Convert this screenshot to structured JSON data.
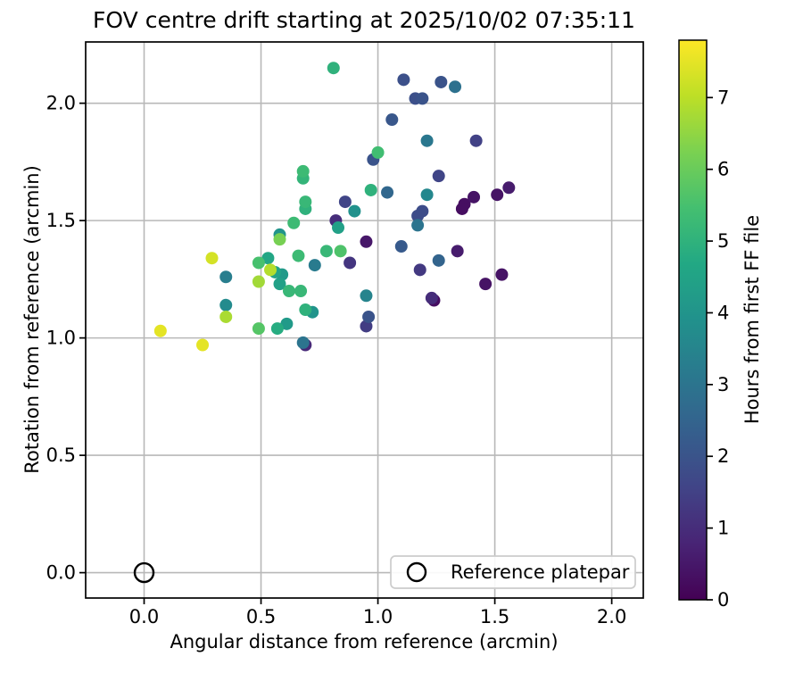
{
  "chart_data": {
    "type": "scatter",
    "title": "FOV centre drift starting at 2025/10/02 07:35:11",
    "xlabel": "Angular distance from reference (arcmin)",
    "ylabel": "Rotation from reference (arcmin)",
    "xlim": [
      -0.25,
      2.135
    ],
    "ylim": [
      -0.108,
      2.261
    ],
    "xticks": [
      0.0,
      0.5,
      1.0,
      1.5,
      2.0
    ],
    "yticks": [
      0.0,
      0.5,
      1.0,
      1.5,
      2.0
    ],
    "grid": true,
    "colormap": "viridis",
    "colorbar": {
      "label": "Hours from first FF file",
      "min": 0,
      "max": 7.8,
      "ticks": [
        0,
        1,
        2,
        3,
        4,
        5,
        6,
        7
      ]
    },
    "legend": {
      "label": "Reference platepar",
      "position": "lower right"
    },
    "reference_point": {
      "x": 0.0,
      "y": 0.0
    },
    "points_format": [
      "angular_distance_arcmin",
      "rotation_arcmin",
      "hours_from_first_ff"
    ],
    "points": [
      [
        0.81,
        2.15,
        5.0
      ],
      [
        1.11,
        2.1,
        1.9
      ],
      [
        1.27,
        2.09,
        2.0
      ],
      [
        1.33,
        2.07,
        2.9
      ],
      [
        1.16,
        2.02,
        1.9
      ],
      [
        1.19,
        2.02,
        2.0
      ],
      [
        1.06,
        1.93,
        2.1
      ],
      [
        1.21,
        1.84,
        3.1
      ],
      [
        1.42,
        1.84,
        1.5
      ],
      [
        1.0,
        1.79,
        5.4
      ],
      [
        0.98,
        1.76,
        2.0
      ],
      [
        0.68,
        1.71,
        5.3
      ],
      [
        0.68,
        1.68,
        5.1
      ],
      [
        1.26,
        1.69,
        1.6
      ],
      [
        0.97,
        1.63,
        5.0
      ],
      [
        1.04,
        1.62,
        2.6
      ],
      [
        1.21,
        1.61,
        3.6
      ],
      [
        1.41,
        1.6,
        0.4
      ],
      [
        1.51,
        1.61,
        0.4
      ],
      [
        1.56,
        1.64,
        0.6
      ],
      [
        1.37,
        1.57,
        0.3
      ],
      [
        0.86,
        1.58,
        1.6
      ],
      [
        0.69,
        1.58,
        5.2
      ],
      [
        0.69,
        1.55,
        5.0
      ],
      [
        0.9,
        1.54,
        3.9
      ],
      [
        0.82,
        1.5,
        1.0
      ],
      [
        0.64,
        1.49,
        5.3
      ],
      [
        0.83,
        1.47,
        4.4
      ],
      [
        0.58,
        1.44,
        4.0
      ],
      [
        0.58,
        1.42,
        6.2
      ],
      [
        1.17,
        1.52,
        1.8
      ],
      [
        1.19,
        1.54,
        1.8
      ],
      [
        1.17,
        1.48,
        3.0
      ],
      [
        1.36,
        1.55,
        0.3
      ],
      [
        0.95,
        1.41,
        0.5
      ],
      [
        1.1,
        1.39,
        2.2
      ],
      [
        1.34,
        1.37,
        0.6
      ],
      [
        1.26,
        1.33,
        2.5
      ],
      [
        1.18,
        1.29,
        1.3
      ],
      [
        1.53,
        1.27,
        0.4
      ],
      [
        1.46,
        1.23,
        0.4
      ],
      [
        1.23,
        1.17,
        1.0
      ],
      [
        1.24,
        1.16,
        0.3
      ],
      [
        0.95,
        1.18,
        3.5
      ],
      [
        0.96,
        1.09,
        2.0
      ],
      [
        0.95,
        1.05,
        1.4
      ],
      [
        0.88,
        1.32,
        1.2
      ],
      [
        0.78,
        1.37,
        5.2
      ],
      [
        0.84,
        1.37,
        5.6
      ],
      [
        0.73,
        1.31,
        3.2
      ],
      [
        0.66,
        1.35,
        5.3
      ],
      [
        0.53,
        1.34,
        4.6
      ],
      [
        0.49,
        1.32,
        5.5
      ],
      [
        0.54,
        1.29,
        6.9
      ],
      [
        0.49,
        1.24,
        6.7
      ],
      [
        0.56,
        1.28,
        4.5
      ],
      [
        0.59,
        1.27,
        4.2
      ],
      [
        0.58,
        1.23,
        4.4
      ],
      [
        0.29,
        1.34,
        7.3
      ],
      [
        0.35,
        1.26,
        3.3
      ],
      [
        0.35,
        1.14,
        3.7
      ],
      [
        0.35,
        1.09,
        6.8
      ],
      [
        0.07,
        1.03,
        7.5
      ],
      [
        0.25,
        0.97,
        7.5
      ],
      [
        0.49,
        1.04,
        5.7
      ],
      [
        0.62,
        1.2,
        5.2
      ],
      [
        0.67,
        1.2,
        5.2
      ],
      [
        0.69,
        1.12,
        5.0
      ],
      [
        0.72,
        1.11,
        4.0
      ],
      [
        0.61,
        1.06,
        4.2
      ],
      [
        0.57,
        1.04,
        4.8
      ],
      [
        0.68,
        0.98,
        3.0
      ],
      [
        0.69,
        0.97,
        0.9
      ]
    ]
  },
  "colors": {
    "grid": "#b8b8b8",
    "spine": "#000000",
    "legend_border": "#cccccc",
    "background": "#ffffff"
  }
}
